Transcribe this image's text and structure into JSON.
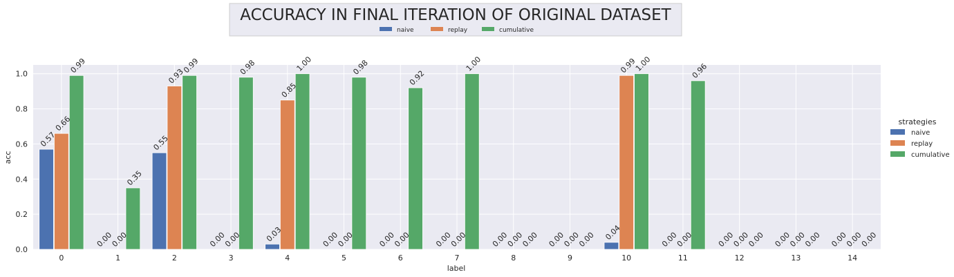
{
  "chart_data": {
    "type": "bar",
    "title": "ACCURACY IN FINAL ITERATION OF ORIGINAL DATASET",
    "xlabel": "label",
    "ylabel": "acc",
    "ylim": [
      0,
      1.05
    ],
    "yticks": [
      "0.0",
      "0.2",
      "0.4",
      "0.6",
      "0.8",
      "1.0"
    ],
    "categories": [
      "0",
      "1",
      "2",
      "3",
      "4",
      "5",
      "6",
      "7",
      "8",
      "9",
      "10",
      "11",
      "12",
      "13",
      "14"
    ],
    "series": [
      {
        "name": "naive",
        "color": "#4c72b0",
        "values": [
          0.57,
          0.0,
          0.55,
          0.0,
          0.03,
          0.0,
          0.0,
          0.0,
          0.0,
          0.0,
          0.04,
          0.0,
          0.0,
          0.0,
          0.0
        ],
        "labels": [
          "0.57",
          "0.00",
          "0.55",
          "0.00",
          "0.03",
          "0.00",
          "0.00",
          "0.00",
          "0.00",
          "0.00",
          "0.04",
          "0.00",
          "0.00",
          "0.00",
          "0.00"
        ]
      },
      {
        "name": "replay",
        "color": "#dd8452",
        "values": [
          0.66,
          0.0,
          0.93,
          0.0,
          0.85,
          0.0,
          0.0,
          0.0,
          0.0,
          0.0,
          0.99,
          0.0,
          0.0,
          0.0,
          0.0
        ],
        "labels": [
          "0.66",
          "0.00",
          "0.93",
          "0.00",
          "0.85",
          "0.00",
          "0.00",
          "0.00",
          "0.00",
          "0.00",
          "0.99",
          "0.00",
          "0.00",
          "0.00",
          "0.00"
        ]
      },
      {
        "name": "cumulative",
        "color": "#55a868",
        "values": [
          0.99,
          0.35,
          0.99,
          0.98,
          1.0,
          0.98,
          0.92,
          1.0,
          0.0,
          0.0,
          1.0,
          0.96,
          0.0,
          0.0,
          0.0
        ],
        "labels": [
          "0.99",
          "0.35",
          "0.99",
          "0.98",
          "1.00",
          "0.98",
          "0.92",
          "1.00",
          "0.00",
          "0.00",
          "1.00",
          "0.96",
          "0.00",
          "0.00",
          "0.00"
        ]
      }
    ],
    "legend_title": "strategies",
    "legend_position": "right",
    "top_legend_position": "top-center",
    "grid": true,
    "background_color": "#eaeaf2",
    "grid_color": "#ffffff"
  }
}
